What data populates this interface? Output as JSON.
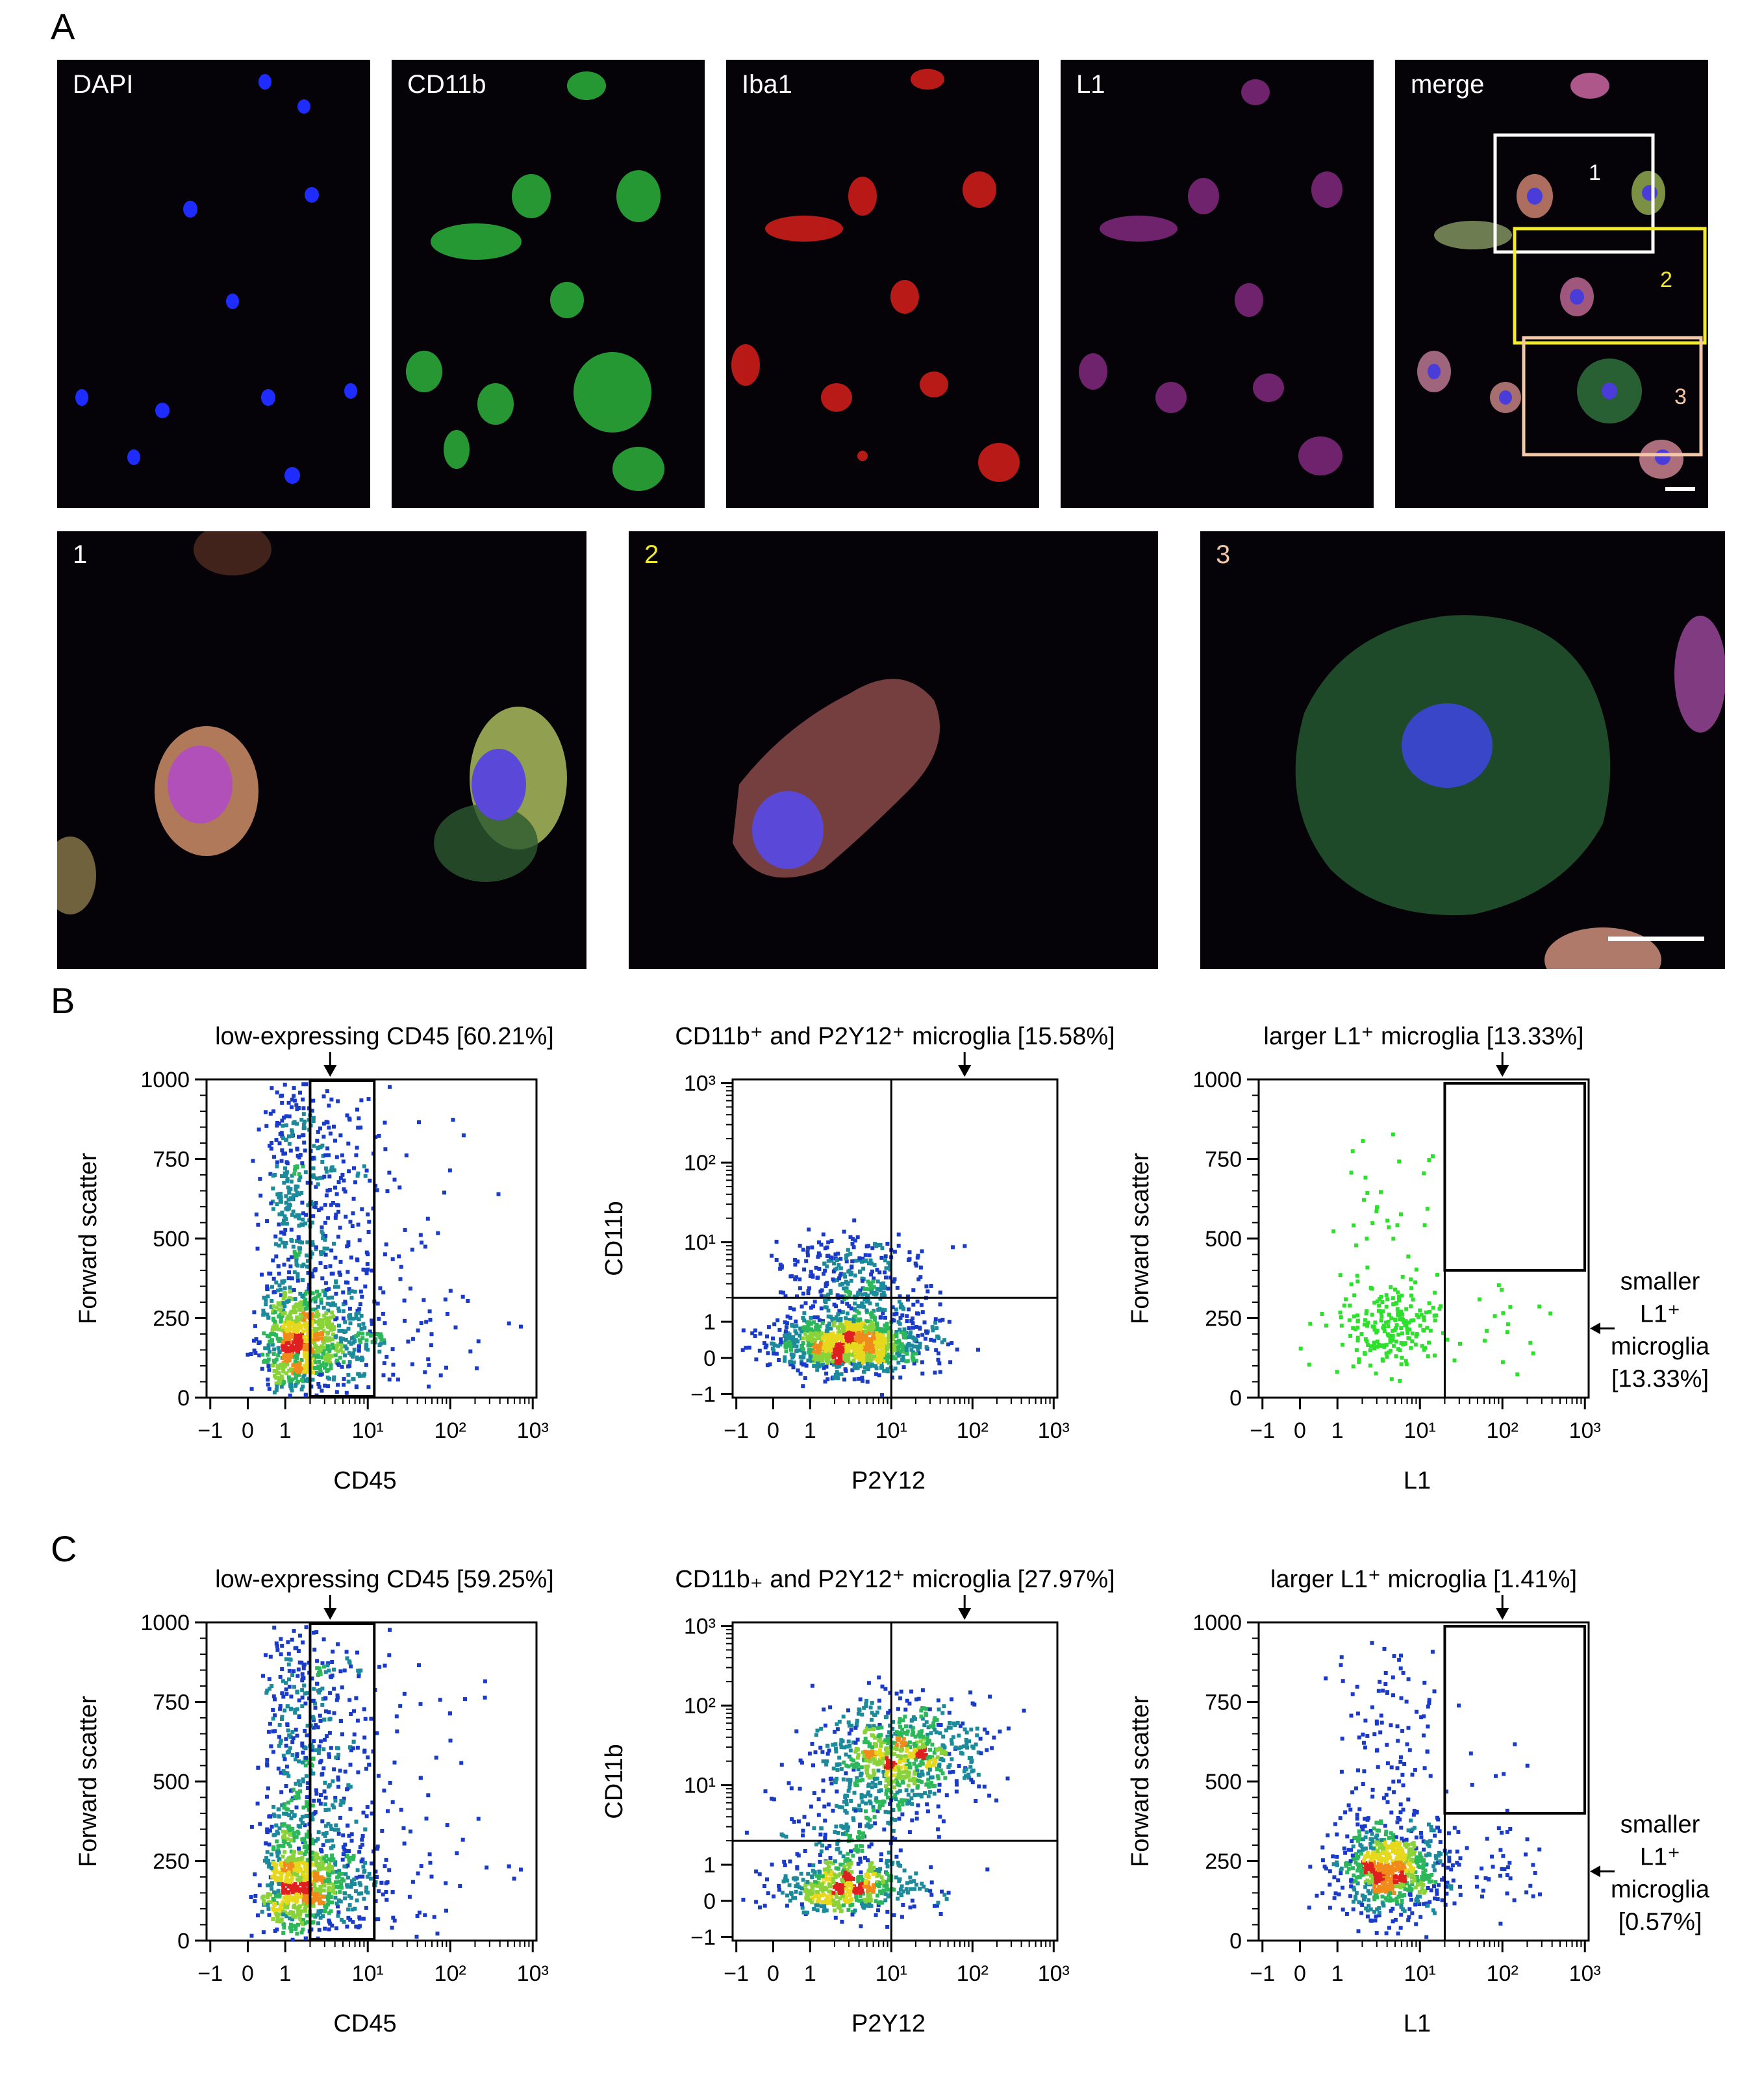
{
  "panel_labels": {
    "a": "A",
    "b": "B",
    "c": "C"
  },
  "channels": [
    {
      "label": "DAPI",
      "color": "#2a3cff"
    },
    {
      "label": "CD11b",
      "color": "#2fbf3a"
    },
    {
      "label": "Iba1",
      "color": "#e0231c"
    },
    {
      "label": "L1",
      "color": "#a8329c"
    },
    {
      "label": "merge",
      "color": "#d98ab8"
    }
  ],
  "roi_boxes": [
    {
      "label": "1",
      "color": "#ffffff"
    },
    {
      "label": "2",
      "color": "#f2ea2a"
    },
    {
      "label": "3",
      "color": "#f2c8a8"
    }
  ],
  "zooms": [
    {
      "label": "1",
      "color": "#ffffff"
    },
    {
      "label": "2",
      "color": "#f2ea2a"
    },
    {
      "label": "3",
      "color": "#f2c8a8"
    }
  ],
  "chart_data": [
    {
      "id": "B1",
      "type": "scatter",
      "title": "low-expressing CD45 [60.21%]",
      "xlabel": "CD45",
      "ylabel": "Forward scatter",
      "x_scale": "biexponential",
      "xticks": [
        "−1",
        "0",
        "1",
        "10¹",
        "10²",
        "10³"
      ],
      "yticks": [
        "0",
        "250",
        "500",
        "750",
        "1000"
      ],
      "ylim": [
        0,
        1000
      ],
      "gate": {
        "type": "range",
        "x": [
          2,
          12
        ],
        "y": [
          0,
          1000
        ],
        "percent": 60.21
      },
      "cluster": {
        "x_center": 2,
        "y_center": 200,
        "density": "high"
      }
    },
    {
      "id": "B2",
      "type": "scatter",
      "title": "CD11b⁺ and P2Y12⁺ microglia [15.58%]",
      "xlabel": "P2Y12",
      "ylabel": "CD11b",
      "x_scale": "biexponential",
      "y_scale": "biexponential",
      "xticks": [
        "−1",
        "0",
        "1",
        "10¹",
        "10²",
        "10³"
      ],
      "yticks": [
        "−1",
        "0",
        "1",
        "10¹",
        "10²",
        "10³"
      ],
      "quadrant": {
        "x": 10,
        "y": 2
      },
      "upper_right_percent": 15.58,
      "cluster": {
        "x_center": 4,
        "y_center": 0.4,
        "density": "high"
      }
    },
    {
      "id": "B3",
      "type": "scatter",
      "title": "larger L1⁺ microglia [13.33%]",
      "xlabel": "L1",
      "ylabel": "Forward scatter",
      "x_scale": "biexponential",
      "xticks": [
        "−1",
        "0",
        "1",
        "10¹",
        "10²",
        "10³"
      ],
      "yticks": [
        "0",
        "250",
        "500",
        "750",
        "1000"
      ],
      "ylim": [
        0,
        1000
      ],
      "gates": [
        {
          "name": "larger L1⁺ microglia",
          "x": [
            20,
            1000
          ],
          "y": [
            400,
            1000
          ],
          "percent": 13.33
        },
        {
          "name": "smaller L1⁺ microglia",
          "x": [
            20,
            1000
          ],
          "y": [
            0,
            400
          ],
          "percent": 13.33
        }
      ],
      "side_label": [
        "smaller",
        "L1⁺",
        "microglia",
        "[13.33%]"
      ]
    },
    {
      "id": "C1",
      "type": "scatter",
      "title": "low-expressing CD45 [59.25%]",
      "xlabel": "CD45",
      "ylabel": "Forward scatter",
      "x_scale": "biexponential",
      "xticks": [
        "−1",
        "0",
        "1",
        "10¹",
        "10²",
        "10³"
      ],
      "yticks": [
        "0",
        "250",
        "500",
        "750",
        "1000"
      ],
      "ylim": [
        0,
        1000
      ],
      "gate": {
        "type": "range",
        "x": [
          2,
          12
        ],
        "y": [
          0,
          1000
        ],
        "percent": 59.25
      },
      "cluster": {
        "x_center": 2,
        "y_center": 230,
        "density": "high"
      }
    },
    {
      "id": "C2",
      "type": "scatter",
      "title": "CD11b₊ and P2Y12⁺ microglia [27.97%]",
      "xlabel": "P2Y12",
      "ylabel": "CD11b",
      "x_scale": "biexponential",
      "y_scale": "biexponential",
      "xticks": [
        "−1",
        "0",
        "1",
        "10¹",
        "10²",
        "10³"
      ],
      "yticks": [
        "−1",
        "0",
        "1",
        "10¹",
        "10²",
        "10³"
      ],
      "quadrant": {
        "x": 10,
        "y": 2
      },
      "upper_right_percent": 27.97,
      "clusters": [
        {
          "x_center": 3,
          "y_center": 0.5
        },
        {
          "x_center": 12,
          "y_center": 25
        }
      ]
    },
    {
      "id": "C3",
      "type": "scatter",
      "title": "larger L1⁺ microglia [1.41%]",
      "xlabel": "L1",
      "ylabel": "Forward scatter",
      "x_scale": "biexponential",
      "xticks": [
        "−1",
        "0",
        "1",
        "10¹",
        "10²",
        "10³"
      ],
      "yticks": [
        "0",
        "250",
        "500",
        "750",
        "1000"
      ],
      "ylim": [
        0,
        1000
      ],
      "gates": [
        {
          "name": "larger L1⁺ microglia",
          "x": [
            20,
            1000
          ],
          "y": [
            400,
            1000
          ],
          "percent": 1.41
        },
        {
          "name": "smaller L1⁺ microglia",
          "x": [
            20,
            1000
          ],
          "y": [
            0,
            400
          ],
          "percent": 0.57
        }
      ],
      "side_label": [
        "smaller",
        "L1⁺",
        "microglia",
        "[0.57%]"
      ]
    }
  ]
}
